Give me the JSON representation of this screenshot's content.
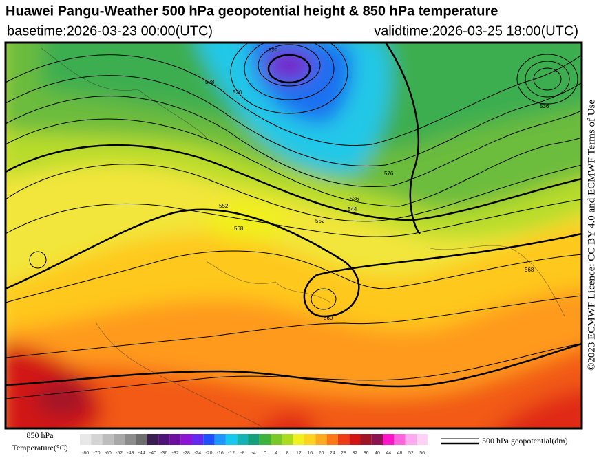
{
  "header": {
    "title": "Huawei Pangu-Weather 500 hPa geopotential height & 850 hPa temperature",
    "basetime": "basetime:2026-03-23 00:00(UTC)",
    "validtime": "validtime:2026-03-25 18:00(UTC)"
  },
  "license": "©2023 ECMWF Licence: CC BY 4.0 and ECMWF Terms of Use",
  "map": {
    "contour_labels": [
      "552",
      "560",
      "568",
      "536",
      "544",
      "528",
      "576",
      "552",
      "568",
      "520",
      "528",
      "536",
      "560"
    ]
  },
  "legend": {
    "temperature_title_1": "850 hPa",
    "temperature_title_2": "Temperature(°C)",
    "ticks": [
      "-80",
      "-70",
      "-60",
      "-52",
      "-48",
      "-44",
      "-40",
      "-36",
      "-32",
      "-28",
      "-24",
      "-20",
      "-16",
      "-12",
      "-8",
      "-4",
      "0",
      "4",
      "8",
      "12",
      "16",
      "20",
      "24",
      "28",
      "32",
      "36",
      "40",
      "44",
      "48",
      "52",
      "56"
    ],
    "colors": [
      "#e8e8e8",
      "#d4d4d4",
      "#bdbdbd",
      "#a8a8a8",
      "#8c8c8c",
      "#6e6e6e",
      "#3c1e50",
      "#501478",
      "#6e0fa0",
      "#8c14d2",
      "#6428f0",
      "#1e50ff",
      "#1e96ff",
      "#14c8f0",
      "#14b4b4",
      "#14a078",
      "#3cb43c",
      "#78c828",
      "#aadc1e",
      "#f0f01e",
      "#ffd21e",
      "#ffaa1e",
      "#ff7814",
      "#f03c14",
      "#d21414",
      "#a01428",
      "#8c1450",
      "#ff14c8",
      "#ff64dc",
      "#ffaaf0",
      "#ffd2f5"
    ],
    "line_label": "500 hPa geopotential(dm)"
  }
}
